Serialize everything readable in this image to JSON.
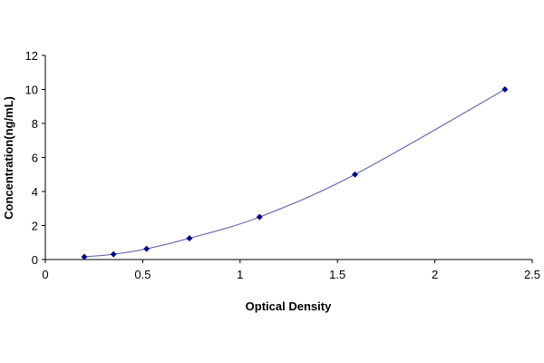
{
  "chart_data": {
    "type": "scatter",
    "title": "",
    "xlabel": "Optical Density",
    "ylabel": "Concentration(ng/mL)",
    "xlim": [
      0,
      2.5
    ],
    "ylim": [
      0,
      12
    ],
    "x_ticks": [
      0,
      0.5,
      1,
      1.5,
      2,
      2.5
    ],
    "x_tick_labels": [
      "0",
      "0.5",
      "1",
      "1.5",
      "2",
      "2.5"
    ],
    "y_ticks": [
      0,
      2,
      4,
      6,
      8,
      10,
      12
    ],
    "y_tick_labels": [
      "0",
      "2",
      "4",
      "6",
      "8",
      "10",
      "12"
    ],
    "grid": false,
    "series": [
      {
        "color": "#00008b",
        "line_color": "#6a6aaa",
        "fit": "smooth curve",
        "points": [
          {
            "x": 0.2,
            "y": 0.16
          },
          {
            "x": 0.35,
            "y": 0.31
          },
          {
            "x": 0.52,
            "y": 0.63
          },
          {
            "x": 0.74,
            "y": 1.25
          },
          {
            "x": 1.1,
            "y": 2.5
          },
          {
            "x": 1.59,
            "y": 5.0
          },
          {
            "x": 2.36,
            "y": 10.0
          }
        ]
      }
    ]
  }
}
